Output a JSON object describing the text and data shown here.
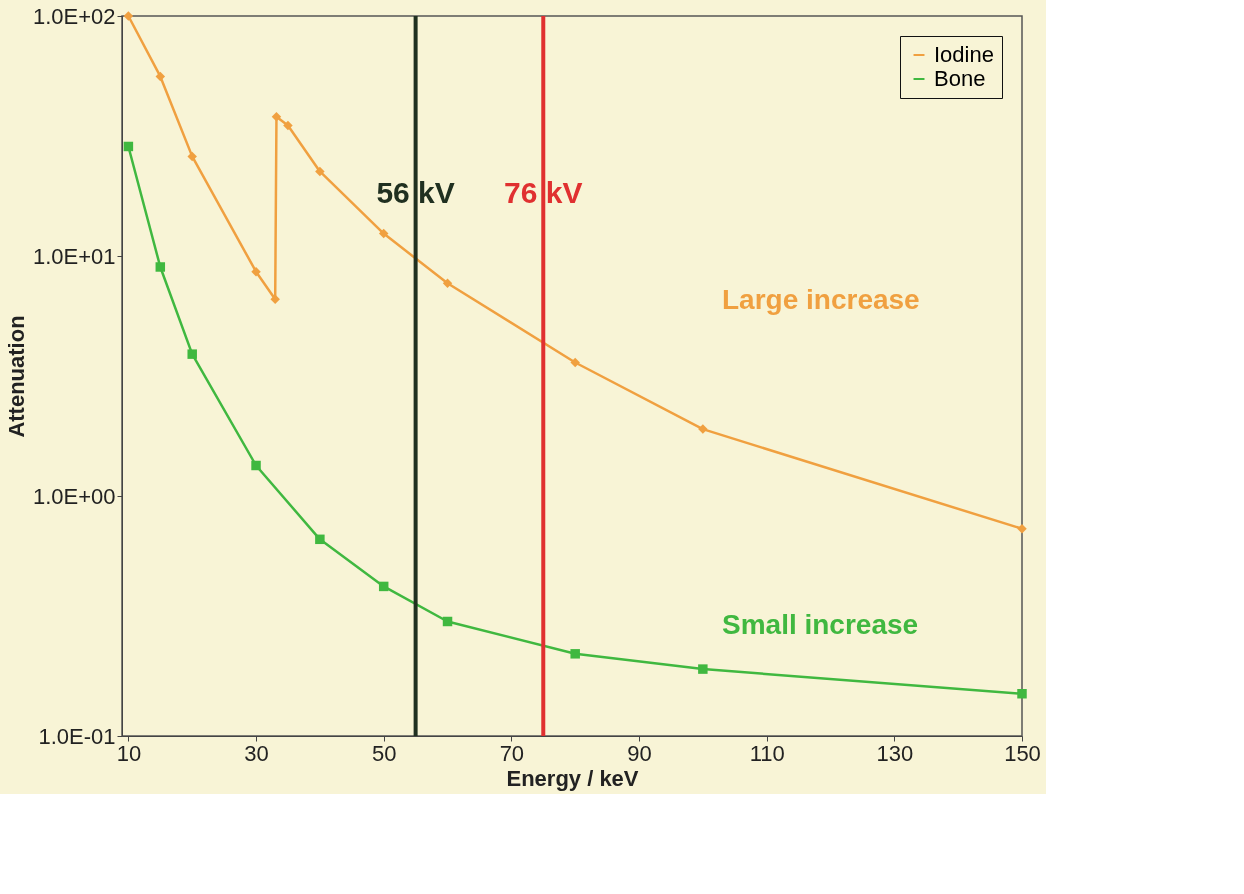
{
  "chart_data": {
    "type": "line",
    "xlabel": "Energy / keV",
    "ylabel": "Attenuation",
    "xlim": [
      9,
      150
    ],
    "xticks": [
      10,
      30,
      50,
      70,
      90,
      110,
      130,
      150
    ],
    "ylim": [
      0.1,
      100
    ],
    "yticks": [
      {
        "value": 0.1,
        "label": "1.0E-01"
      },
      {
        "value": 1,
        "label": "1.0E+00"
      },
      {
        "value": 10,
        "label": "1.0E+01"
      },
      {
        "value": 100,
        "label": "1.0E+02"
      }
    ],
    "log": "y",
    "grid": false,
    "legend": "top right",
    "series": [
      {
        "name": "Iodine",
        "color": "#f0a040",
        "marker": "diamond",
        "x": [
          10,
          15,
          20,
          30,
          33,
          33.2,
          35,
          40,
          50,
          60,
          80,
          100,
          150
        ],
        "values": [
          100,
          56,
          26,
          8.6,
          6.6,
          38,
          35,
          22.5,
          12.4,
          7.7,
          3.6,
          1.9,
          0.73
        ]
      },
      {
        "name": "Bone",
        "color": "#40b840",
        "marker": "square",
        "x": [
          10,
          15,
          20,
          30,
          40,
          50,
          60,
          80,
          100,
          150
        ],
        "values": [
          28.6,
          9.0,
          3.9,
          1.34,
          0.66,
          0.42,
          0.3,
          0.22,
          0.19,
          0.15
        ]
      }
    ],
    "ref_lines": [
      {
        "axis": "x",
        "value": 55,
        "label": "56 kV",
        "color": "#203020"
      },
      {
        "axis": "x",
        "value": 75,
        "label": "76 kV",
        "color": "#e03030"
      }
    ],
    "annotations": [
      "Large increase",
      "Small increase"
    ]
  }
}
